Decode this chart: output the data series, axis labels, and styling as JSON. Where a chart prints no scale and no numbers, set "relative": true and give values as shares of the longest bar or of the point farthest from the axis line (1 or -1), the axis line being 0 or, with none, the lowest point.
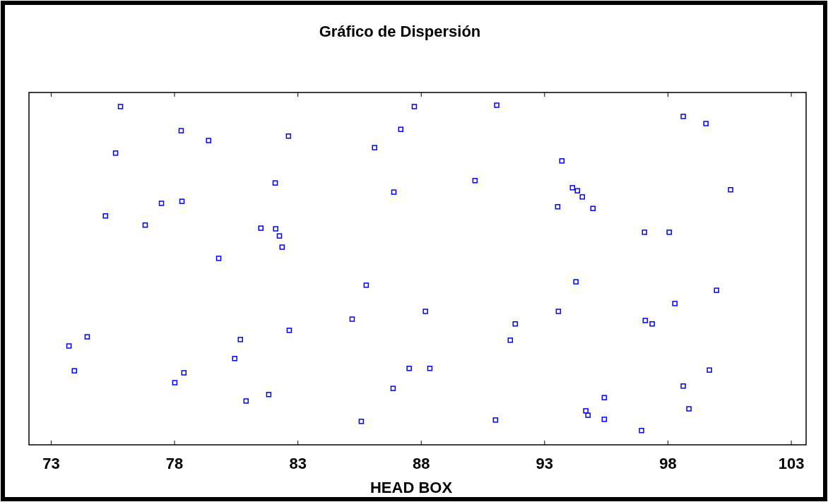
{
  "chart_data": {
    "type": "scatter",
    "title": "Gráfico de Dispersión",
    "xlabel": "HEAD BOX",
    "relative": true,
    "marker": "square",
    "grid": false,
    "xlim": [
      72.1,
      103.6
    ],
    "xticks": [
      73,
      78,
      83,
      88,
      93,
      98,
      103
    ],
    "series": [
      {
        "color": "#0000ff",
        "x": [
          75.81,
          78.27,
          75.61,
          79.38,
          82.62,
          87.72,
          91.06,
          87.17,
          86.11,
          98.62,
          99.54,
          93.7,
          82.08,
          86.89,
          90.18,
          94.13,
          94.33,
          94.53,
          93.53,
          94.96,
          100.54,
          75.2,
          77.47,
          78.3,
          76.81,
          81.5,
          82.1,
          82.25,
          82.36,
          97.05,
          98.05,
          79.79,
          85.77,
          94.27,
          99.97,
          98.28,
          88.17,
          93.56,
          85.2,
          97.08,
          97.36,
          91.81,
          82.65,
          74.46,
          73.72,
          80.67,
          91.61,
          80.44,
          73.94,
          78.38,
          78.01,
          87.51,
          88.35,
          99.68,
          86.86,
          98.62,
          81.82,
          80.9,
          95.42,
          98.85,
          94.67,
          94.76,
          95.42,
          85.57,
          91.01,
          96.93
        ],
        "values": [
          0.996,
          0.925,
          0.859,
          0.896,
          0.909,
          0.996,
          1,
          0.929,
          0.875,
          0.967,
          0.946,
          0.836,
          0.771,
          0.744,
          0.778,
          0.757,
          0.748,
          0.73,
          0.701,
          0.696,
          0.751,
          0.674,
          0.711,
          0.717,
          0.647,
          0.638,
          0.636,
          0.615,
          0.582,
          0.626,
          0.626,
          0.549,
          0.47,
          0.48,
          0.455,
          0.416,
          0.393,
          0.393,
          0.37,
          0.366,
          0.356,
          0.356,
          0.337,
          0.318,
          0.291,
          0.31,
          0.308,
          0.254,
          0.218,
          0.212,
          0.183,
          0.225,
          0.225,
          0.22,
          0.166,
          0.173,
          0.148,
          0.129,
          0.139,
          0.106,
          0.1,
          0.087,
          0.075,
          0.069,
          0.073,
          0.042
        ]
      }
    ]
  }
}
